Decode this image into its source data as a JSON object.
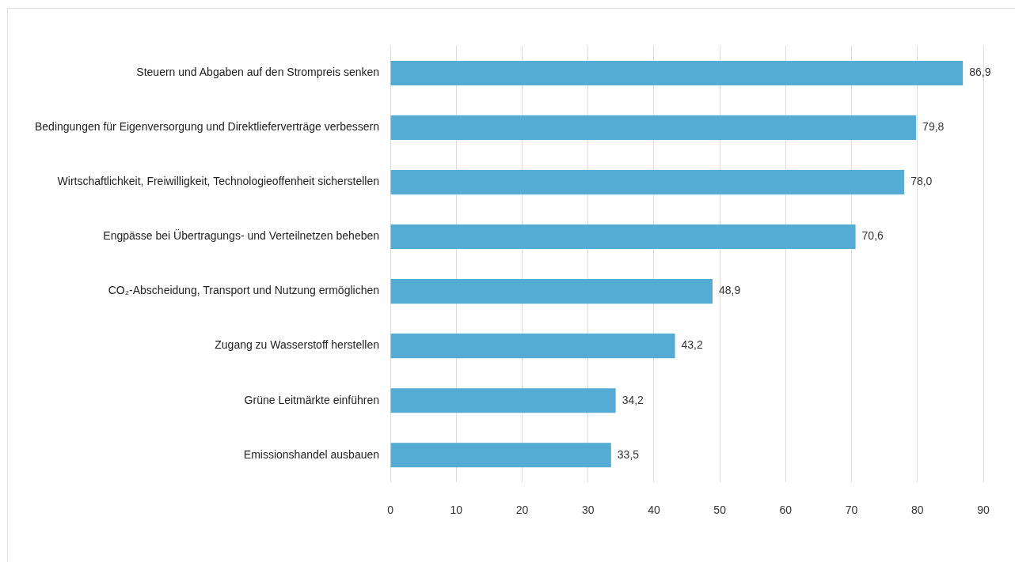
{
  "chart_data": {
    "type": "bar",
    "orientation": "horizontal",
    "categories": [
      "Steuern und Abgaben auf den Strompreis senken",
      "Bedingungen für Eigenversorgung und Direktlieferverträge verbessern",
      "Wirtschaftlichkeit, Freiwilligkeit, Technologieoffenheit sicherstellen",
      "Engpässe bei Übertragungs- und Verteilnetzen beheben",
      "CO₂-Abscheidung, Transport und Nutzung ermöglichen",
      "Zugang zu Wasserstoff herstellen",
      "Grüne Leitmärkte einführen",
      "Emissionshandel ausbauen"
    ],
    "values": [
      86.9,
      79.8,
      78.0,
      70.6,
      48.9,
      43.2,
      34.2,
      33.5
    ],
    "value_labels": [
      "86,9",
      "79,8",
      "78,0",
      "70,6",
      "48,9",
      "43,2",
      "34,2",
      "33,5"
    ],
    "color": "#54abd4",
    "xlim": [
      0,
      90
    ],
    "xticks": [
      0,
      10,
      20,
      30,
      40,
      50,
      60,
      70,
      80,
      90
    ],
    "grid": "x",
    "legend": false
  }
}
